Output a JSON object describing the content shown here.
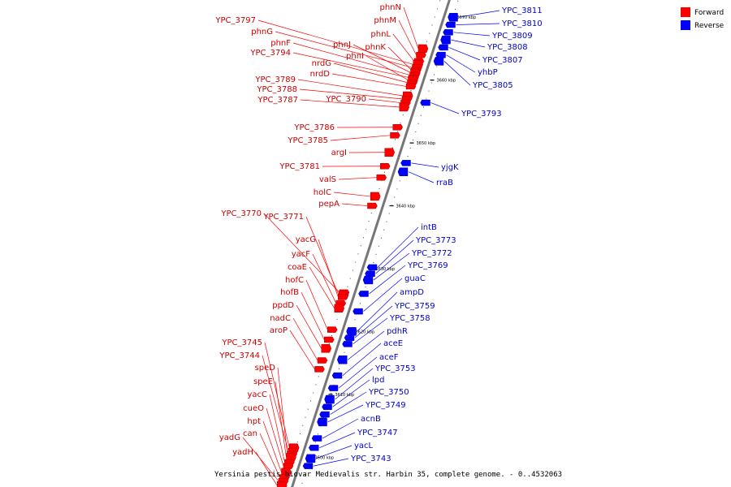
{
  "legend": [
    {
      "label": "Forward",
      "color": "#ff0000"
    },
    {
      "label": "Reverse",
      "color": "#0000ff"
    }
  ],
  "caption": "Yersinia pestis biovar Medievalis str. Harbin 35, complete genome. - 0..4532063",
  "colors": {
    "forward": "#ff0000",
    "forward_label": "#cc0000",
    "reverse": "#0000ff",
    "reverse_label": "#0000cc",
    "backbone": "#777777"
  },
  "axis": {
    "start_kbp": 3595,
    "end_kbp": 3673
  },
  "ticks": [
    {
      "kbp": 3600,
      "label": "3600 kbp"
    },
    {
      "kbp": 3610,
      "label": "3610 kbp"
    },
    {
      "kbp": 3620,
      "label": "3620 kbp"
    },
    {
      "kbp": 3630,
      "label": "3630 kbp"
    },
    {
      "kbp": 3640,
      "label": "3640 kbp"
    },
    {
      "kbp": 3650,
      "label": "3650 kbp"
    },
    {
      "kbp": 3660,
      "label": "3660 kbp"
    },
    {
      "kbp": 3670,
      "label": "3670 kbp"
    }
  ],
  "forward_genes": [
    {
      "name": "phnN",
      "kbp": 3665.0
    },
    {
      "name": "phnM",
      "kbp": 3664.0
    },
    {
      "name": "phnL",
      "kbp": 3663.0
    },
    {
      "name": "YPC_3797",
      "kbp": 3662.5
    },
    {
      "name": "phnG",
      "kbp": 3662.0
    },
    {
      "name": "phnK",
      "kbp": 3661.6
    },
    {
      "name": "phnJ",
      "kbp": 3661.2
    },
    {
      "name": "phnF",
      "kbp": 3660.8
    },
    {
      "name": "YPC_3794",
      "kbp": 3660.4
    },
    {
      "name": "phnI",
      "kbp": 3660.0
    },
    {
      "name": "nrdG",
      "kbp": 3659.6
    },
    {
      "name": "nrdD",
      "kbp": 3659.0
    },
    {
      "name": "YPC_3789",
      "kbp": 3657.5
    },
    {
      "name": "YPC_3788",
      "kbp": 3657.0
    },
    {
      "name": "YPC_3790",
      "kbp": 3656.4
    },
    {
      "name": "YPC_3787",
      "kbp": 3655.7
    },
    {
      "name": "YPC_3786",
      "kbp": 3652.5
    },
    {
      "name": "YPC_3785",
      "kbp": 3651.2
    },
    {
      "name": "argI",
      "kbp": 3648.5
    },
    {
      "name": "YPC_3781",
      "kbp": 3646.3
    },
    {
      "name": "valS",
      "kbp": 3644.5
    },
    {
      "name": "holC",
      "kbp": 3641.5
    },
    {
      "name": "pepA",
      "kbp": 3640.0
    },
    {
      "name": "YPC_3770",
      "kbp": 3626.2
    },
    {
      "name": "YPC_3771",
      "kbp": 3625.8
    },
    {
      "name": "yacG",
      "kbp": 3625.5
    },
    {
      "name": "yacF",
      "kbp": 3624.5
    },
    {
      "name": "coaE",
      "kbp": 3623.7
    },
    {
      "name": "hofC",
      "kbp": 3620.3
    },
    {
      "name": "hofB",
      "kbp": 3618.7
    },
    {
      "name": "ppdD",
      "kbp": 3617.3
    },
    {
      "name": "nadC",
      "kbp": 3615.4
    },
    {
      "name": "aroP",
      "kbp": 3614.0
    },
    {
      "name": "YPC_3745",
      "kbp": 3601.5
    },
    {
      "name": "YPC_3744",
      "kbp": 3601.0
    },
    {
      "name": "speD",
      "kbp": 3600.5
    },
    {
      "name": "speE",
      "kbp": 3600.0
    },
    {
      "name": "yacC",
      "kbp": 3599.2
    },
    {
      "name": "cueO",
      "kbp": 3598.6
    },
    {
      "name": "hpt",
      "kbp": 3597.6
    },
    {
      "name": "can",
      "kbp": 3596.8
    },
    {
      "name": "yadG",
      "kbp": 3596.2
    },
    {
      "name": "yadH",
      "kbp": 3595.5
    }
  ],
  "reverse_genes": [
    {
      "name": "YPC_3811",
      "kbp": 3670.0
    },
    {
      "name": "YPC_3810",
      "kbp": 3668.8
    },
    {
      "name": "YPC_3809",
      "kbp": 3667.6
    },
    {
      "name": "YPC_3808",
      "kbp": 3666.4
    },
    {
      "name": "YPC_3807",
      "kbp": 3665.2
    },
    {
      "name": "yhbP",
      "kbp": 3664.0
    },
    {
      "name": "YPC_3805",
      "kbp": 3663.0
    },
    {
      "name": "YPC_3793",
      "kbp": 3656.4
    },
    {
      "name": "yjgK",
      "kbp": 3646.8
    },
    {
      "name": "rraB",
      "kbp": 3645.4
    },
    {
      "name": "intB",
      "kbp": 3630.2
    },
    {
      "name": "YPC_3773",
      "kbp": 3629.2
    },
    {
      "name": "YPC_3772",
      "kbp": 3628.2
    },
    {
      "name": "YPC_3769",
      "kbp": 3626.0
    },
    {
      "name": "guaC",
      "kbp": 3623.2
    },
    {
      "name": "ampD",
      "kbp": 3620.0
    },
    {
      "name": "YPC_3759",
      "kbp": 3619.0
    },
    {
      "name": "YPC_3758",
      "kbp": 3618.0
    },
    {
      "name": "pdhR",
      "kbp": 3615.5
    },
    {
      "name": "aceE",
      "kbp": 3613.0
    },
    {
      "name": "aceF",
      "kbp": 3611.0
    },
    {
      "name": "YPC_3753",
      "kbp": 3609.2
    },
    {
      "name": "lpd",
      "kbp": 3608.0
    },
    {
      "name": "YPC_3750",
      "kbp": 3606.8
    },
    {
      "name": "YPC_3749",
      "kbp": 3605.6
    },
    {
      "name": "acnB",
      "kbp": 3603.0
    },
    {
      "name": "YPC_3747",
      "kbp": 3601.5
    },
    {
      "name": "yacL",
      "kbp": 3599.8
    },
    {
      "name": "YPC_3743",
      "kbp": 3598.6
    }
  ]
}
